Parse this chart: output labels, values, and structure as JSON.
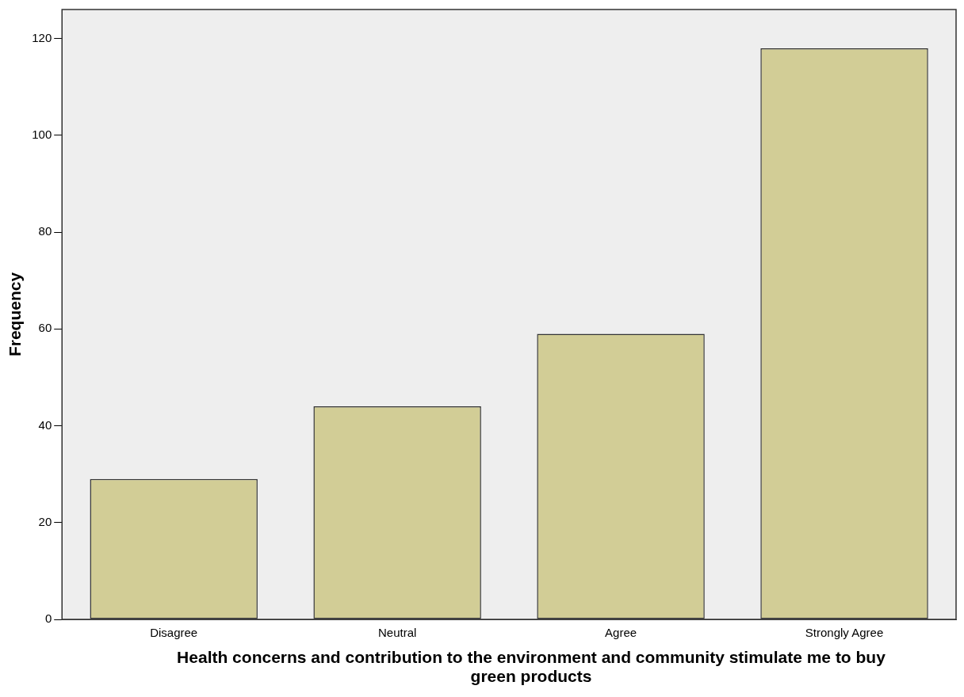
{
  "chart_data": {
    "type": "bar",
    "xlabel": "Health concerns and contribution to the environment and community stimulate me to buy green products",
    "ylabel": "Frequency",
    "categories": [
      "Disagree",
      "Neutral",
      "Agree",
      "Strongly Agree"
    ],
    "values": [
      29,
      44,
      59,
      118
    ],
    "color": "#d2cd96",
    "ylim": [
      0,
      126
    ],
    "yticks": [
      0,
      20,
      40,
      60,
      80,
      100,
      120
    ],
    "grid": false,
    "legend": false
  }
}
